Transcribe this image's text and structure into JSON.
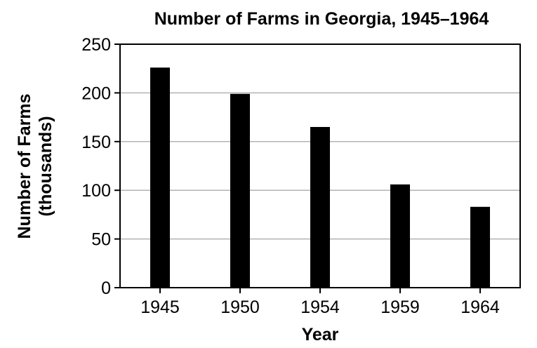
{
  "chart_data": {
    "type": "bar",
    "title": "Number of Farms in Georgia, 1945–1964",
    "xlabel": "Year",
    "ylabel_line1": "Number of Farms",
    "ylabel_line2": "(thousands)",
    "categories": [
      "1945",
      "1950",
      "1954",
      "1959",
      "1964"
    ],
    "values": [
      226,
      199,
      165,
      106,
      83
    ],
    "ylim": [
      0,
      250
    ],
    "yticks": [
      "0",
      "50",
      "100",
      "150",
      "200",
      "250"
    ],
    "grid": true,
    "bar_color": "#000000",
    "grid_color": "#b3b3b3"
  }
}
